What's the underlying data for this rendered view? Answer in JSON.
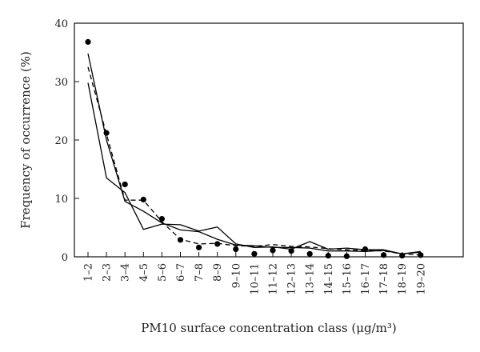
{
  "chart_data": {
    "type": "line",
    "title": "",
    "xlabel": "PM10 surface concentration class (μg/m³)",
    "ylabel": "Frequency of occurrence (%)",
    "ylim": [
      0,
      40
    ],
    "yticks": [
      0,
      10,
      20,
      30,
      40
    ],
    "grid": false,
    "legend": "none",
    "categories": [
      "1–2",
      "2–3",
      "3–4",
      "4–5",
      "5–6",
      "6–7",
      "7–8",
      "8–9",
      "9–10",
      "10–11",
      "11–12",
      "12–13",
      "13–14",
      "14–15",
      "15–16",
      "16–17",
      "17–18",
      "18–19",
      "19–20"
    ],
    "series": [
      {
        "style": "markers",
        "values": [
          36.8,
          21.2,
          12.4,
          9.8,
          6.5,
          2.9,
          1.6,
          2.2,
          1.3,
          0.5,
          1.1,
          1.0,
          0.5,
          0.2,
          0.1,
          1.3,
          0.3,
          0.2,
          0.3
        ]
      },
      {
        "style": "dashed",
        "values": [
          32.5,
          21.0,
          9.7,
          9.7,
          6.0,
          3.0,
          2.2,
          2.3,
          1.9,
          1.8,
          2.1,
          1.8,
          1.7,
          1.4,
          1.2,
          1.1,
          1.0,
          0.5,
          0.3
        ]
      },
      {
        "style": "solid",
        "values": [
          29.8,
          13.5,
          11.0,
          4.7,
          5.6,
          5.5,
          4.4,
          5.1,
          2.2,
          1.6,
          1.7,
          1.3,
          2.6,
          1.3,
          1.5,
          1.2,
          1.2,
          0.5,
          0.8
        ]
      },
      {
        "style": "solid",
        "values": [
          34.8,
          20.0,
          9.5,
          7.8,
          5.8,
          4.6,
          4.3,
          3.0,
          2.0,
          1.9,
          1.6,
          1.6,
          1.5,
          1.0,
          1.0,
          0.9,
          1.1,
          0.5,
          0.9
        ]
      }
    ]
  }
}
